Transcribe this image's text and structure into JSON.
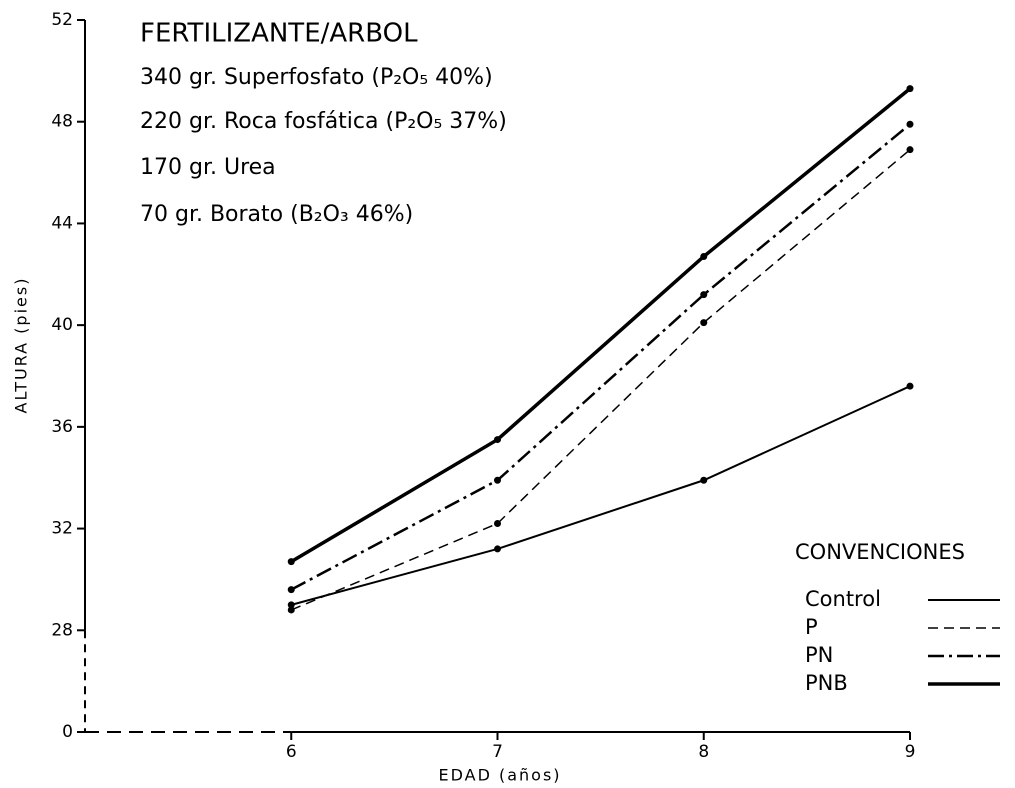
{
  "chart_data": {
    "type": "line",
    "annotations": {
      "title": "FERTILIZANTE/ARBOL",
      "lines": [
        "340 gr. Superfosfato (P₂O₅ 40%)",
        "220 gr. Roca fosfática (P₂O₅ 37%)",
        "170 gr. Urea",
        "70 gr. Borato (B₂O₃ 46%)"
      ]
    },
    "xlabel": "EDAD (años)",
    "ylabel": "ALTURA (pies)",
    "x": [
      6,
      7,
      8,
      9
    ],
    "xlim": [
      5,
      9
    ],
    "xticks": [
      6,
      7,
      8,
      9
    ],
    "ylim": [
      0,
      52
    ],
    "yticks": [
      0,
      28,
      32,
      36,
      40,
      44,
      48,
      52
    ],
    "axis_break": true,
    "legend_title": "CONVENCIONES",
    "legend": "lower right",
    "series": [
      {
        "name": "Control",
        "color": "#000000",
        "dash": "solid",
        "width": 2,
        "values": [
          29.0,
          31.2,
          33.9,
          37.6
        ]
      },
      {
        "name": "P",
        "color": "#000000",
        "dash": "dashed",
        "width": 1.5,
        "values": [
          28.8,
          32.2,
          40.1,
          46.9
        ]
      },
      {
        "name": "PN",
        "color": "#000000",
        "dash": "dashdot",
        "width": 2.5,
        "values": [
          29.6,
          33.9,
          41.2,
          47.9
        ]
      },
      {
        "name": "PNB",
        "color": "#000000",
        "dash": "solid",
        "width": 3.5,
        "values": [
          30.7,
          35.5,
          42.7,
          49.3
        ]
      }
    ]
  }
}
